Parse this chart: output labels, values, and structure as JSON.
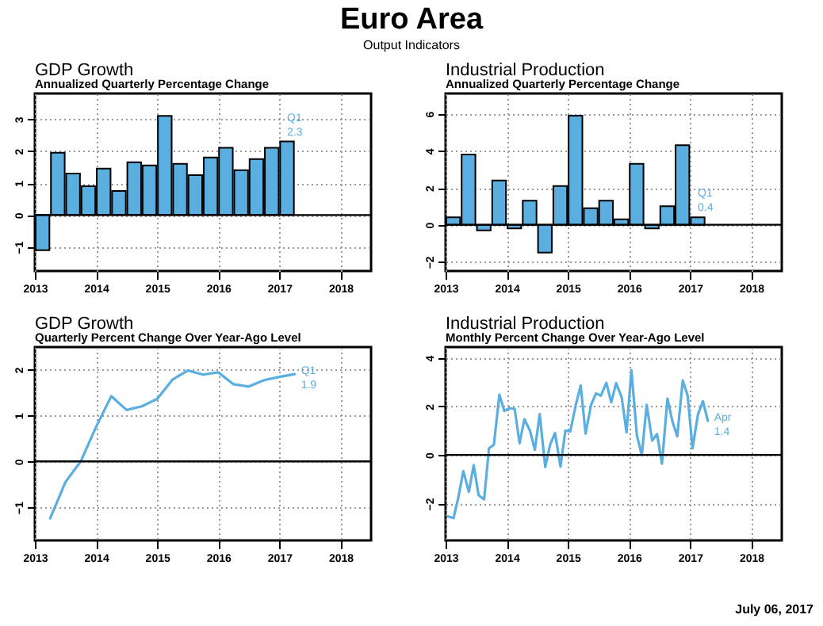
{
  "chart_data": [
    {
      "type": "other",
      "title": "Euro Area",
      "subtitle": "Output Indicators",
      "annotations": [
        "July 06, 2017"
      ]
    },
    {
      "type": "bar",
      "title": "GDP Growth",
      "subtitle": "Annualized Quarterly Percentage Change",
      "x": [
        2013.125,
        2013.375,
        2013.625,
        2013.875,
        2014.125,
        2014.375,
        2014.625,
        2014.875,
        2015.125,
        2015.375,
        2015.625,
        2015.875,
        2016.125,
        2016.375,
        2016.625,
        2016.875,
        2017.125
      ],
      "series": [
        {
          "color": "#5aaee0",
          "values": [
            -1.1,
            1.95,
            1.3,
            0.9,
            1.45,
            0.75,
            1.65,
            1.55,
            3.1,
            1.6,
            1.25,
            1.8,
            2.1,
            1.4,
            1.75,
            2.1,
            2.3
          ]
        }
      ],
      "xlim": [
        2013,
        2018.5
      ],
      "xticks": [
        2013,
        2014,
        2015,
        2016,
        2017,
        2018
      ],
      "ylim": [
        -1.75,
        3.8
      ],
      "yticks": [
        -1,
        0,
        1,
        2,
        3
      ],
      "grid": true,
      "ref_lines": [
        {
          "axis": "y",
          "value": 0,
          "color": "#000000"
        }
      ],
      "annotations": [
        {
          "text": "Q1 2.3",
          "x": 2017.125,
          "y": 2.3
        }
      ]
    },
    {
      "type": "bar",
      "title": "Industrial Production",
      "subtitle": "Annualized Quarterly Percentage Change",
      "x": [
        2013.125,
        2013.375,
        2013.625,
        2013.875,
        2014.125,
        2014.375,
        2014.625,
        2014.875,
        2015.125,
        2015.375,
        2015.625,
        2015.875,
        2016.125,
        2016.375,
        2016.625,
        2016.875,
        2017.125
      ],
      "series": [
        {
          "color": "#5aaee0",
          "values": [
            0.4,
            3.8,
            -0.3,
            2.4,
            -0.2,
            1.3,
            -1.5,
            2.1,
            5.9,
            0.9,
            1.3,
            0.3,
            3.3,
            -0.2,
            1.0,
            4.3,
            0.4
          ]
        }
      ],
      "xlim": [
        2013,
        2018.5
      ],
      "xticks": [
        2013,
        2014,
        2015,
        2016,
        2017,
        2018
      ],
      "ylim": [
        -2.5,
        7.1
      ],
      "yticks": [
        -2,
        0,
        2,
        4,
        6
      ],
      "grid": true,
      "ref_lines": [
        {
          "axis": "y",
          "value": 0,
          "color": "#000000"
        }
      ],
      "annotations": [
        {
          "text": "Q1 0.4",
          "x": 2017.125,
          "y": 0.4
        }
      ]
    },
    {
      "type": "line",
      "title": "GDP Growth",
      "subtitle": "Quarterly Percent Change Over Year-Ago Level",
      "x": [
        2013.25,
        2013.5,
        2013.75,
        2014,
        2014.25,
        2014.5,
        2014.75,
        2015,
        2015.25,
        2015.5,
        2015.75,
        2016,
        2016.25,
        2016.5,
        2016.75,
        2017,
        2017.25
      ],
      "series": [
        {
          "color": "#5aaee0",
          "values": [
            -1.24,
            -0.45,
            0.0,
            0.75,
            1.42,
            1.12,
            1.2,
            1.36,
            1.78,
            1.98,
            1.89,
            1.94,
            1.68,
            1.63,
            1.77,
            1.84,
            1.9
          ]
        }
      ],
      "xlim": [
        2013,
        2018.5
      ],
      "xticks": [
        2013,
        2014,
        2015,
        2016,
        2017,
        2018
      ],
      "ylim": [
        -1.72,
        2.49
      ],
      "yticks": [
        -1,
        0,
        1,
        2
      ],
      "grid": true,
      "ref_lines": [
        {
          "axis": "y",
          "value": 0,
          "color": "#000000"
        }
      ],
      "annotations": [
        {
          "text": "Q1 1.9",
          "x": 2017.25,
          "y": 1.9
        }
      ]
    },
    {
      "type": "line",
      "title": "Industrial Production",
      "subtitle": "Monthly Percent Change Over Year-Ago Level",
      "x": [
        2013.04,
        2013.13,
        2013.21,
        2013.29,
        2013.38,
        2013.46,
        2013.54,
        2013.63,
        2013.71,
        2013.79,
        2013.88,
        2013.96,
        2014.04,
        2014.13,
        2014.21,
        2014.29,
        2014.38,
        2014.46,
        2014.54,
        2014.63,
        2014.71,
        2014.79,
        2014.88,
        2014.96,
        2015.04,
        2015.13,
        2015.21,
        2015.29,
        2015.38,
        2015.46,
        2015.54,
        2015.63,
        2015.71,
        2015.79,
        2015.88,
        2015.96,
        2016.04,
        2016.13,
        2016.21,
        2016.29,
        2016.38,
        2016.46,
        2016.54,
        2016.63,
        2016.71,
        2016.79,
        2016.88,
        2016.96,
        2017.04,
        2017.13,
        2017.21,
        2017.29
      ],
      "series": [
        {
          "color": "#5aaee0",
          "values": [
            -2.53,
            -2.6,
            -1.73,
            -0.67,
            -1.52,
            -0.42,
            -1.66,
            -1.83,
            0.27,
            0.42,
            2.48,
            1.81,
            1.92,
            1.9,
            0.48,
            1.47,
            1.0,
            0.21,
            1.68,
            -0.5,
            0.42,
            0.9,
            -0.48,
            1.0,
            0.97,
            2.06,
            2.86,
            0.88,
            2.06,
            2.53,
            2.44,
            2.97,
            2.17,
            2.95,
            2.38,
            0.93,
            3.49,
            0.8,
            0.0,
            2.06,
            0.59,
            0.86,
            -0.36,
            2.32,
            1.39,
            0.76,
            3.07,
            2.44,
            0.27,
            1.68,
            2.21,
            1.4
          ]
        }
      ],
      "xlim": [
        2013,
        2018.5
      ],
      "xticks": [
        2013,
        2014,
        2015,
        2016,
        2017,
        2018
      ],
      "ylim": [
        -3.52,
        4.44
      ],
      "yticks": [
        -2,
        0,
        2,
        4
      ],
      "grid": true,
      "ref_lines": [
        {
          "axis": "y",
          "value": 0,
          "color": "#000000"
        }
      ],
      "annotations": [
        {
          "text": "Apr 1.4",
          "x": 2017.29,
          "y": 1.4
        }
      ]
    }
  ]
}
